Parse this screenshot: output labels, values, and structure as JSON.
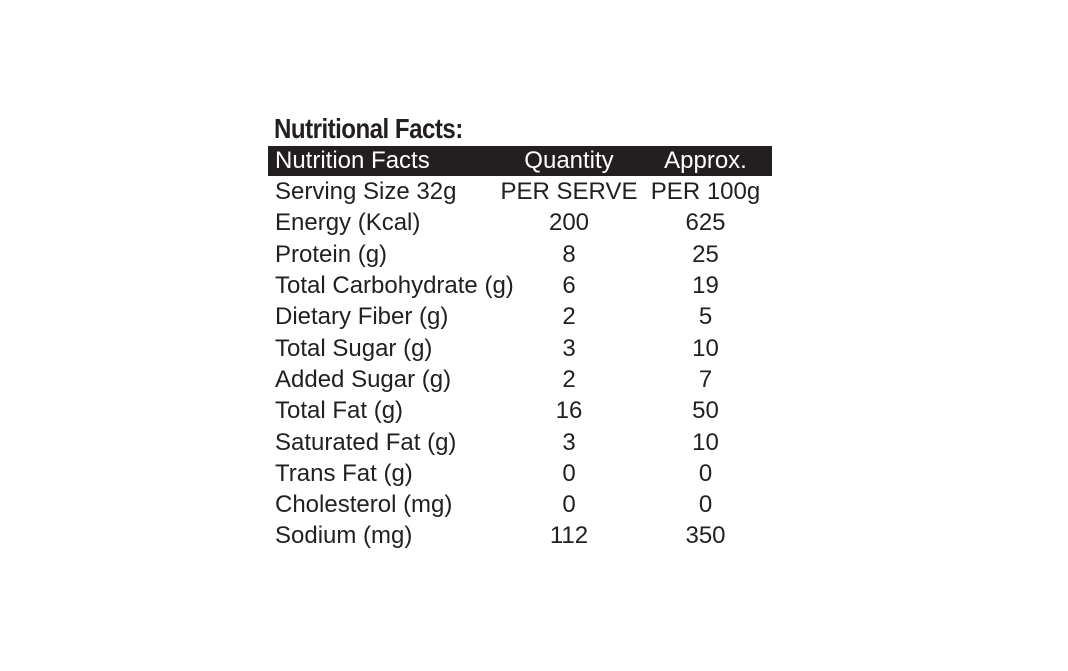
{
  "heading": "Nutritional Facts:",
  "table": {
    "headers": [
      "Nutrition Facts",
      "Quantity",
      "Approx."
    ],
    "rows": [
      [
        "Serving Size 32g",
        "PER SERVE",
        "PER 100g"
      ],
      [
        "Energy (Kcal)",
        "200",
        "625"
      ],
      [
        "Protein (g)",
        "8",
        "25"
      ],
      [
        "Total Carbohydrate (g)",
        "6",
        "19"
      ],
      [
        "Dietary Fiber (g)",
        "2",
        "5"
      ],
      [
        "Total Sugar (g)",
        "3",
        "10"
      ],
      [
        "Added Sugar (g)",
        "2",
        "7"
      ],
      [
        "Total Fat (g)",
        "16",
        "50"
      ],
      [
        "Saturated Fat (g)",
        "3",
        "10"
      ],
      [
        "Trans Fat (g)",
        "0",
        "0"
      ],
      [
        "Cholesterol (mg)",
        "0",
        "0"
      ],
      [
        "Sodium (mg)",
        "112",
        "350"
      ]
    ]
  },
  "colors": {
    "header_bg": "#231f20",
    "header_text": "#ffffff",
    "text": "#231f20",
    "background": "#ffffff"
  }
}
